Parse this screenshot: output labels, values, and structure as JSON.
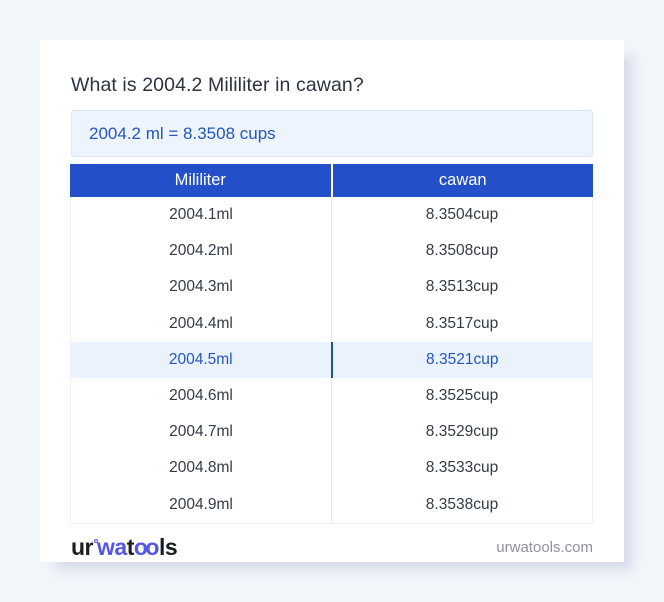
{
  "header": {
    "question": "What is 2004.2 Mililiter in cawan?"
  },
  "result": {
    "text": "2004.2 ml = 8.3508 cups"
  },
  "table": {
    "headers": [
      "Mililiter",
      "cawan"
    ],
    "rows": [
      {
        "ml": "2004.1ml",
        "cup": "8.3504cup",
        "highlighted": false
      },
      {
        "ml": "2004.2ml",
        "cup": "8.3508cup",
        "highlighted": false
      },
      {
        "ml": "2004.3ml",
        "cup": "8.3513cup",
        "highlighted": false
      },
      {
        "ml": "2004.4ml",
        "cup": "8.3517cup",
        "highlighted": false
      },
      {
        "ml": "2004.5ml",
        "cup": "8.3521cup",
        "highlighted": true
      },
      {
        "ml": "2004.6ml",
        "cup": "8.3525cup",
        "highlighted": false
      },
      {
        "ml": "2004.7ml",
        "cup": "8.3529cup",
        "highlighted": false
      },
      {
        "ml": "2004.8ml",
        "cup": "8.3533cup",
        "highlighted": false
      },
      {
        "ml": "2004.9ml",
        "cup": "8.3538cup",
        "highlighted": false
      }
    ]
  },
  "footer": {
    "logo": {
      "part1": "ur",
      "part2": "wa",
      "part3": "t",
      "part4": "oo",
      "part5": "ls"
    },
    "domain": "urwatools.com"
  },
  "colors": {
    "header_blue": "#2350c8",
    "accent_blue": "#2457ba",
    "highlight_bg": "#e9f2fd",
    "result_bg": "#edf4fd",
    "logo_accent": "#5457e8"
  }
}
